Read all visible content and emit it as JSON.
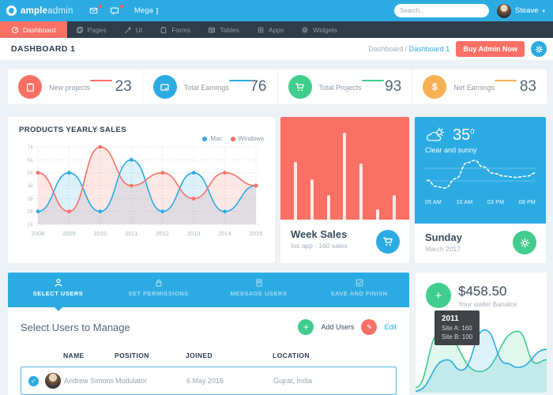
{
  "colors": {
    "accent_blue": "#2cabe3",
    "accent_red": "#fa7065",
    "accent_green": "#40cd8d",
    "accent_orange": "#f8b153",
    "nav_dark": "#2f3d4a",
    "page_bg": "#edf2f6"
  },
  "header": {
    "brand_bold": "ample",
    "brand_light": "admin",
    "mega_label": "Mega",
    "search_placeholder": "Search...",
    "user_name": "Steave"
  },
  "nav": {
    "items": [
      {
        "label": "Dashboard",
        "icon": "gauge-icon",
        "active": true
      },
      {
        "label": "Pages",
        "icon": "pages-icon"
      },
      {
        "label": "UI",
        "icon": "magic-wand-icon"
      },
      {
        "label": "Forms",
        "icon": "clipboard-icon"
      },
      {
        "label": "Tables",
        "icon": "table-icon"
      },
      {
        "label": "Apps",
        "icon": "grid-icon"
      },
      {
        "label": "Widgets",
        "icon": "gear-icon"
      }
    ]
  },
  "breadcrumb": {
    "page_title": "DASHBOARD 1",
    "path_root": "Dashboard",
    "separator": "/",
    "path_current": "Dashboard 1",
    "buy_button": "Buy Admin Now"
  },
  "stats": [
    {
      "label": "New projects",
      "value": "23",
      "color": "#fa7065",
      "icon": "clipboard-icon"
    },
    {
      "label": "Total Earnings",
      "value": "76",
      "color": "#2cabe3",
      "icon": "tablet-icon"
    },
    {
      "label": "Total Projects",
      "value": "93",
      "color": "#40cd8d",
      "icon": "cart-icon"
    },
    {
      "label": "Net Earnings",
      "value": "83",
      "color": "#f8b153",
      "icon": "dollar-icon"
    }
  ],
  "week_sales": {
    "title": "Week Sales",
    "subtitle": "Ios app - 160 sales"
  },
  "weather": {
    "temp": "35",
    "deg": "0",
    "condition": "Clear and sunny",
    "times": [
      "05 AM",
      "10 AM",
      "03 PM",
      "08 PM"
    ],
    "day": "Sunday",
    "month": "March 2017"
  },
  "tabs": [
    {
      "label": "SELECT USERS",
      "icon": "user-icon",
      "active": true
    },
    {
      "label": "SET PERMISSIONS",
      "icon": "lock-icon"
    },
    {
      "label": "MESSAGE USERS",
      "icon": "message-icon"
    },
    {
      "label": "SAVE AND FINISH",
      "icon": "check-square-icon"
    }
  ],
  "manage": {
    "heading": "Select Users to Manage",
    "add_label": "Add Users",
    "edit_label": "Edit"
  },
  "table": {
    "headers": [
      "NAME",
      "POSITION",
      "JOINED",
      "LOCATION"
    ],
    "rows": [
      {
        "selected": true,
        "name": "Andrew Simons",
        "position": "Modulator",
        "joined": "6 May 2016",
        "location": "Gujrat, India"
      }
    ]
  },
  "wallet": {
    "amount": "$458.50",
    "label": "Your wallet Banalce",
    "tooltip": {
      "year": "2011",
      "line1": "Site A: 160",
      "line2": "Site B: 100"
    }
  },
  "chart_data": [
    {
      "id": "products-yearly-sales",
      "type": "line",
      "title": "PRODUCTS YEARLY SALES",
      "categories": [
        "2008",
        "2009",
        "2010",
        "2011",
        "2012",
        "2013",
        "2014",
        "2015"
      ],
      "series": [
        {
          "name": "Mac",
          "color": "#2cabe3",
          "values": [
            2,
            5,
            2,
            6,
            2,
            5,
            2,
            4
          ]
        },
        {
          "name": "Windows",
          "color": "#fa7065",
          "values": [
            5,
            2,
            7,
            4,
            5,
            3,
            5,
            4
          ]
        }
      ],
      "unit": "k",
      "ymin": 1,
      "ymax": 7,
      "ylabel_suffix": "k",
      "grid": true,
      "legend_position": "top-right"
    },
    {
      "id": "week-sales-bars",
      "type": "bar",
      "bar_color": "#ffffff",
      "bg_color": "#fa7065",
      "values_pct": [
        56,
        39,
        24,
        85,
        55,
        10,
        24
      ]
    },
    {
      "id": "weather-temperature",
      "type": "line",
      "style": "dashed",
      "x_labels": [
        "05 AM",
        "10 AM",
        "03 PM",
        "08 PM"
      ],
      "points_pct": [
        [
          2,
          62
        ],
        [
          10,
          78
        ],
        [
          18,
          82
        ],
        [
          28,
          58
        ],
        [
          38,
          18
        ],
        [
          45,
          12
        ],
        [
          52,
          28
        ],
        [
          62,
          45
        ],
        [
          72,
          52
        ],
        [
          82,
          55
        ],
        [
          92,
          52
        ],
        [
          100,
          44
        ]
      ]
    },
    {
      "id": "wallet-sites",
      "type": "area",
      "tooltip": {
        "year": "2011",
        "site_a": 160,
        "site_b": 100
      },
      "series": [
        {
          "name": "Site A",
          "color": "#40cd8d",
          "points_pct": [
            [
              0,
              95
            ],
            [
              19,
              15
            ],
            [
              49,
              72
            ],
            [
              78,
              14
            ],
            [
              92,
              60
            ],
            [
              100,
              55
            ]
          ]
        },
        {
          "name": "Site B",
          "color": "#2cabe3",
          "points_pct": [
            [
              0,
              100
            ],
            [
              24,
              55
            ],
            [
              35,
              70
            ],
            [
              53,
              12
            ],
            [
              69,
              60
            ],
            [
              78,
              66
            ],
            [
              100,
              40
            ]
          ]
        }
      ]
    }
  ]
}
